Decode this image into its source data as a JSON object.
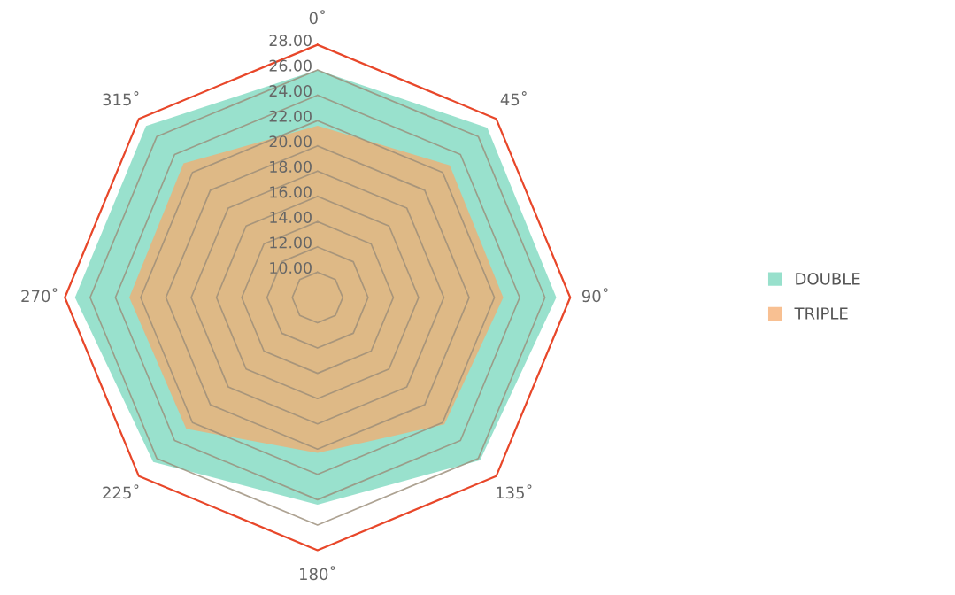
{
  "chart_data": {
    "type": "radar",
    "categories": [
      "0˚",
      "45˚",
      "90˚",
      "135˚",
      "180˚",
      "225˚",
      "270˚",
      "315˚"
    ],
    "series": [
      {
        "name": "DOUBLE",
        "color": "#93dfca",
        "values": [
          26.0,
          27.0,
          26.9,
          26.2,
          24.4,
          26.4,
          27.2,
          27.2
        ]
      },
      {
        "name": "TRIPLE",
        "color": "#f6ab6e",
        "values": [
          21.6,
          22.8,
          22.7,
          22.2,
          20.3,
          22.7,
          22.9,
          23.0
        ]
      }
    ],
    "ylim": [
      8,
      28
    ],
    "yticks": [
      {
        "value": 10,
        "label": "10.00"
      },
      {
        "value": 12,
        "label": "12.00"
      },
      {
        "value": 14,
        "label": "14.00"
      },
      {
        "value": 16,
        "label": "16.00"
      },
      {
        "value": 18,
        "label": "18.00"
      },
      {
        "value": 20,
        "label": "20.00"
      },
      {
        "value": 22,
        "label": "22.00"
      },
      {
        "value": 24,
        "label": "24.00"
      },
      {
        "value": 26,
        "label": "26.00"
      },
      {
        "value": 28,
        "label": "28.00"
      }
    ],
    "grid": true,
    "legend": "right"
  }
}
